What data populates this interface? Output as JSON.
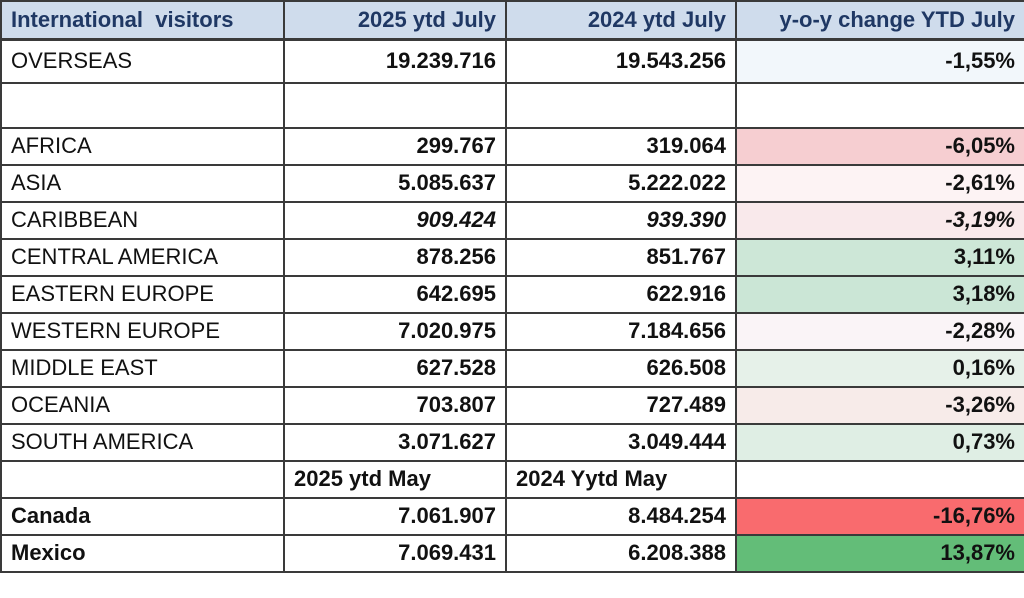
{
  "table": {
    "title": "International visitors year-over-year table",
    "header": {
      "col1": "International  visitors",
      "col2": "2025 ytd July",
      "col3": "2024 ytd July",
      "col4": "y-o-y change YTD July"
    },
    "rows": [
      {
        "label": "OVERSEAS",
        "ytd2025": "19.239.716",
        "ytd2024": "19.543.256",
        "change": "-1,55%",
        "change_bg": "#f2f7fb",
        "style": "tall"
      },
      {
        "label": "",
        "ytd2025": "",
        "ytd2024": "",
        "change": "",
        "change_bg": "#ffffff",
        "style": "spacer"
      },
      {
        "label": "AFRICA",
        "ytd2025": "299.767",
        "ytd2024": "319.064",
        "change": "-6,05%",
        "change_bg": "#f6ced1",
        "style": ""
      },
      {
        "label": "ASIA",
        "ytd2025": "5.085.637",
        "ytd2024": "5.222.022",
        "change": "-2,61%",
        "change_bg": "#fdf3f4",
        "style": ""
      },
      {
        "label": "CARIBBEAN",
        "ytd2025": "909.424",
        "ytd2024": "939.390",
        "change": "-3,19%",
        "change_bg": "#f9e9eb",
        "style": "italic"
      },
      {
        "label": "CENTRAL AMERICA",
        "ytd2025": "878.256",
        "ytd2024": "851.767",
        "change": "3,11%",
        "change_bg": "#cde7d7",
        "style": ""
      },
      {
        "label": "EASTERN EUROPE",
        "ytd2025": "642.695",
        "ytd2024": "622.916",
        "change": "3,18%",
        "change_bg": "#cbe6d6",
        "style": ""
      },
      {
        "label": "WESTERN EUROPE",
        "ytd2025": "7.020.975",
        "ytd2024": "7.184.656",
        "change": "-2,28%",
        "change_bg": "#faf4f7",
        "style": ""
      },
      {
        "label": "MIDDLE EAST",
        "ytd2025": "627.528",
        "ytd2024": "626.508",
        "change": "0,16%",
        "change_bg": "#e6f1e9",
        "style": ""
      },
      {
        "label": "OCEANIA",
        "ytd2025": "703.807",
        "ytd2024": "727.489",
        "change": "-3,26%",
        "change_bg": "#f7ebe9",
        "style": ""
      },
      {
        "label": "SOUTH AMERICA",
        "ytd2025": "3.071.627",
        "ytd2024": "3.049.444",
        "change": "0,73%",
        "change_bg": "#dfeee4",
        "style": ""
      },
      {
        "label": "",
        "ytd2025": "2025 ytd May",
        "ytd2024": "2024 Yytd May",
        "change": "",
        "change_bg": "#ffffff",
        "style": "subheader"
      },
      {
        "label": "Canada",
        "ytd2025": "7.061.907",
        "ytd2024": "8.484.254",
        "change": "-16,76%",
        "change_bg": "#f96b6e",
        "style": "bold-label"
      },
      {
        "label": "Mexico",
        "ytd2025": "7.069.431",
        "ytd2024": "6.208.388",
        "change": "13,87%",
        "change_bg": "#63bd78",
        "style": "bold-label"
      }
    ]
  },
  "colors": {
    "header_bg": "#cfdcec",
    "header_text": "#1f3864",
    "border": "#3a3a3a",
    "negative_strong": "#f96b6e",
    "negative_light": "#f9e9eb",
    "positive_strong": "#63bd78",
    "positive_light": "#cde7d7",
    "overseas_tint": "#f2f7fb"
  }
}
